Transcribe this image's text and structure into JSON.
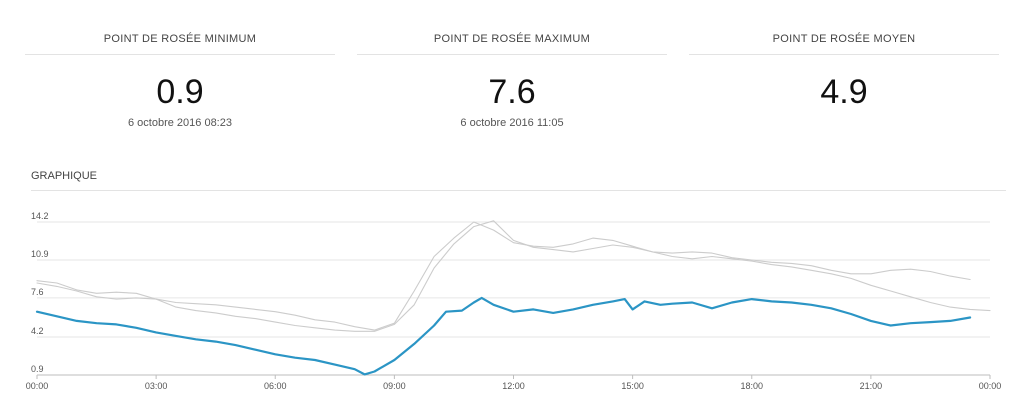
{
  "stats": [
    {
      "title": "POINT DE ROSÉE MINIMUM",
      "value": "0.9",
      "date": "6 octobre 2016 08:23"
    },
    {
      "title": "POINT DE ROSÉE MAXIMUM",
      "value": "7.6",
      "date": "6 octobre 2016 11:05"
    },
    {
      "title": "POINT DE ROSÉE MOYEN",
      "value": "4.9",
      "date": ""
    }
  ],
  "section_title": "GRAPHIQUE",
  "colors": {
    "primary_series": "#2b95c5",
    "comparison_series": "#cccccc",
    "grid": "#e6e6e6"
  },
  "chart_data": {
    "type": "line",
    "title": "",
    "xlabel": "",
    "ylabel": "",
    "x_ticks": [
      "00:00",
      "03:00",
      "06:00",
      "09:00",
      "12:00",
      "15:00",
      "18:00",
      "21:00",
      "00:00"
    ],
    "y_ticks": [
      "0.9",
      "4.2",
      "7.6",
      "10.9",
      "14.2"
    ],
    "xlim": [
      0,
      24
    ],
    "ylim": [
      0.9,
      14.2
    ],
    "grid": true,
    "legend": "none",
    "series": [
      {
        "x": [
          0,
          0.5,
          1,
          1.5,
          2,
          2.5,
          3,
          3.5,
          4,
          4.5,
          5,
          5.5,
          6,
          6.5,
          7,
          7.5,
          8,
          8.5,
          9,
          9.5,
          10,
          10.5,
          11,
          11.5,
          12,
          12.5,
          13,
          13.5,
          14,
          14.5,
          15,
          15.5,
          16,
          16.5,
          17,
          17.5,
          18,
          18.5,
          19,
          19.5,
          20,
          20.5,
          21,
          21.5,
          22,
          22.5,
          23,
          23.5,
          24
        ],
        "values": [
          8.9,
          8.6,
          8.2,
          7.7,
          7.5,
          7.6,
          7.5,
          6.8,
          6.5,
          6.3,
          6.0,
          5.8,
          5.5,
          5.2,
          5.0,
          4.8,
          4.7,
          4.7,
          5.3,
          7.0,
          10.2,
          12.3,
          13.8,
          14.3,
          12.6,
          12.0,
          11.8,
          11.6,
          11.9,
          12.2,
          12.0,
          11.6,
          11.2,
          11.0,
          11.2,
          11.0,
          10.8,
          10.5,
          10.3,
          10.0,
          9.7,
          9.3,
          8.7,
          8.2,
          7.7,
          7.2,
          6.8,
          6.6,
          6.5
        ]
      },
      {
        "x": [
          0,
          0.5,
          1,
          1.5,
          2,
          2.5,
          3,
          3.5,
          4,
          4.5,
          5,
          5.5,
          6,
          6.5,
          7,
          7.5,
          8,
          8.5,
          9,
          9.5,
          10,
          10.5,
          11,
          11.5,
          12,
          12.5,
          13,
          13.5,
          14,
          14.5,
          15,
          15.5,
          16,
          16.5,
          17,
          17.5,
          18,
          18.5,
          19,
          19.5,
          20,
          20.5,
          21,
          21.5,
          22,
          22.5,
          23,
          23.5
        ],
        "values": [
          9.1,
          8.9,
          8.3,
          8.0,
          8.1,
          8.0,
          7.5,
          7.2,
          7.1,
          7.0,
          6.8,
          6.6,
          6.4,
          6.1,
          5.7,
          5.5,
          5.1,
          4.8,
          5.4,
          8.2,
          11.2,
          12.8,
          14.2,
          13.5,
          12.4,
          12.1,
          12.0,
          12.3,
          12.8,
          12.6,
          12.1,
          11.6,
          11.5,
          11.6,
          11.5,
          11.1,
          10.9,
          10.7,
          10.6,
          10.4,
          10.0,
          9.7,
          9.7,
          10.0,
          10.1,
          9.9,
          9.5,
          9.2
        ]
      },
      {
        "x": [
          0,
          0.5,
          1,
          1.5,
          2,
          2.5,
          3,
          3.5,
          4,
          4.5,
          5,
          5.5,
          6,
          6.5,
          7,
          7.5,
          8,
          8.25,
          8.5,
          9,
          9.5,
          10,
          10.3,
          10.7,
          11,
          11.2,
          11.5,
          12,
          12.5,
          13,
          13.5,
          14,
          14.5,
          14.8,
          15,
          15.3,
          15.7,
          16,
          16.5,
          17,
          17.5,
          18,
          18.5,
          19,
          19.5,
          20,
          20.5,
          21,
          21.5,
          22,
          22.5,
          23,
          23.5
        ],
        "values": [
          6.4,
          6.0,
          5.6,
          5.4,
          5.3,
          5.0,
          4.6,
          4.3,
          4.0,
          3.8,
          3.5,
          3.1,
          2.7,
          2.4,
          2.2,
          1.8,
          1.4,
          0.95,
          1.2,
          2.2,
          3.6,
          5.2,
          6.4,
          6.5,
          7.2,
          7.6,
          7.0,
          6.4,
          6.6,
          6.3,
          6.6,
          7.0,
          7.3,
          7.5,
          6.6,
          7.3,
          7.0,
          7.1,
          7.2,
          6.7,
          7.2,
          7.5,
          7.3,
          7.2,
          7.0,
          6.7,
          6.2,
          5.6,
          5.2,
          5.4,
          5.5,
          5.6,
          5.9
        ]
      }
    ]
  }
}
